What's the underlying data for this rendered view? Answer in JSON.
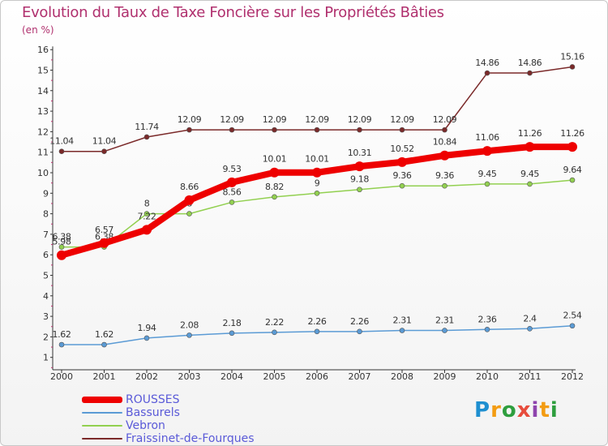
{
  "title": "Evolution du Taux de Taxe Foncière sur les Propriétés Bâties",
  "subtitle": "(en %)",
  "logo": {
    "text": "Proxiti",
    "letters": [
      "P",
      "r",
      "o",
      "x",
      "i",
      "t",
      "i"
    ],
    "colors": [
      "#1e8fd0",
      "#f39c12",
      "#2e9e3e",
      "#e74c3c",
      "#8e44ad",
      "#f39c12",
      "#2e9e3e"
    ]
  },
  "chart_data": {
    "type": "line",
    "x": [
      "2000",
      "2001",
      "2002",
      "2003",
      "2004",
      "2005",
      "2006",
      "2007",
      "2008",
      "2009",
      "2010",
      "2011",
      "2012"
    ],
    "ylim": [
      0,
      16
    ],
    "yticks": [
      "1",
      "2",
      "3",
      "4",
      "5",
      "6",
      "7",
      "8",
      "9",
      "10",
      "11",
      "12",
      "13",
      "14",
      "15",
      "16"
    ],
    "grid": false,
    "legend_position": "bottom-left",
    "series": [
      {
        "name": "ROUSSES",
        "color": "#ee0000",
        "values": [
          5.98,
          6.57,
          7.22,
          8.66,
          9.53,
          10.01,
          10.01,
          10.31,
          10.52,
          10.84,
          11.06,
          11.26,
          11.26
        ],
        "labels": [
          "5.98",
          "6.57",
          "7.22",
          "8.66",
          "9.53",
          "10.01",
          "10.01",
          "10.31",
          "10.52",
          "10.84",
          "11.06",
          "11.26",
          "11.26"
        ]
      },
      {
        "name": "Bassurels",
        "color": "#5b9bd5",
        "values": [
          1.62,
          1.62,
          1.94,
          2.08,
          2.18,
          2.22,
          2.26,
          2.26,
          2.31,
          2.31,
          2.36,
          2.4,
          2.54
        ],
        "labels": [
          "1.62",
          "1.62",
          "1.94",
          "2.08",
          "2.18",
          "2.22",
          "2.26",
          "2.26",
          "2.31",
          "2.31",
          "2.36",
          "2.4",
          "2.54"
        ]
      },
      {
        "name": "Vebron",
        "color": "#92d050",
        "values": [
          6.38,
          6.38,
          8,
          8,
          8.56,
          8.82,
          9,
          9.18,
          9.36,
          9.36,
          9.45,
          9.45,
          9.64
        ],
        "labels": [
          "6.38",
          "6.38",
          "8",
          "8",
          "8.56",
          "8.82",
          "9",
          "9.18",
          "9.36",
          "9.36",
          "9.45",
          "9.45",
          "9.64"
        ]
      },
      {
        "name": "Fraissinet-de-Fourques",
        "color": "#7b2a2a",
        "values": [
          11.04,
          11.04,
          11.74,
          12.09,
          12.09,
          12.09,
          12.09,
          12.09,
          12.09,
          12.09,
          14.86,
          14.86,
          15.16
        ],
        "labels": [
          "11.04",
          "11.04",
          "11.74",
          "12.09",
          "12.09",
          "12.09",
          "12.09",
          "12.09",
          "12.09",
          "12.09",
          "14.86",
          "14.86",
          "15.16"
        ]
      }
    ]
  }
}
